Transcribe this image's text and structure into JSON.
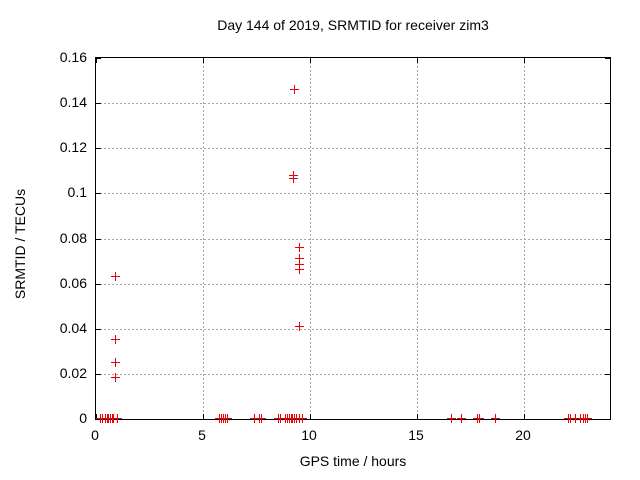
{
  "chart_data": {
    "type": "scatter",
    "title": "Day 144 of 2019, SRMTID for receiver zim3",
    "xlabel": "GPS time / hours",
    "ylabel": "SRMTID / TECUs",
    "xlim": [
      0,
      24.03
    ],
    "ylim": [
      0,
      0.16
    ],
    "xticks": [
      {
        "v": 0,
        "label": "0"
      },
      {
        "v": 5,
        "label": "5"
      },
      {
        "v": 10,
        "label": "10"
      },
      {
        "v": 15,
        "label": "15"
      },
      {
        "v": 20,
        "label": "20"
      }
    ],
    "yticks": [
      {
        "v": 0,
        "label": "0"
      },
      {
        "v": 0.02,
        "label": "0.02"
      },
      {
        "v": 0.04,
        "label": "0.04"
      },
      {
        "v": 0.06,
        "label": "0.06"
      },
      {
        "v": 0.08,
        "label": "0.08"
      },
      {
        "v": 0.1,
        "label": "0.1"
      },
      {
        "v": 0.12,
        "label": "0.12"
      },
      {
        "v": 0.14,
        "label": "0.14"
      },
      {
        "v": 0.16,
        "label": "0.16"
      }
    ],
    "grid": true,
    "legend": false,
    "marker": "plus",
    "marker_color": "#f00000",
    "grid_color": "#a6a6a6",
    "series": [
      {
        "name": "SRMTID",
        "points": [
          [
            0.93,
            0.063
          ],
          [
            0.93,
            0.035
          ],
          [
            0.93,
            0.025
          ],
          [
            0.93,
            0.018
          ],
          [
            9.3,
            0.146
          ],
          [
            9.24,
            0.1077
          ],
          [
            9.24,
            0.1063
          ],
          [
            9.53,
            0.076
          ],
          [
            9.53,
            0.0708
          ],
          [
            9.53,
            0.0684
          ],
          [
            9.53,
            0.0659
          ],
          [
            9.53,
            0.0406
          ],
          [
            0.25,
            0
          ],
          [
            0.33,
            0
          ],
          [
            0.48,
            0
          ],
          [
            0.56,
            0
          ],
          [
            0.63,
            0
          ],
          [
            0.7,
            0
          ],
          [
            0.78,
            0
          ],
          [
            0.86,
            0
          ],
          [
            1.02,
            0
          ],
          [
            5.8,
            0
          ],
          [
            5.9,
            0
          ],
          [
            6.0,
            0
          ],
          [
            6.08,
            0
          ],
          [
            6.16,
            0
          ],
          [
            7.45,
            0
          ],
          [
            7.68,
            0
          ],
          [
            7.76,
            0
          ],
          [
            8.55,
            0
          ],
          [
            8.65,
            0
          ],
          [
            8.9,
            0
          ],
          [
            8.98,
            0
          ],
          [
            9.06,
            0
          ],
          [
            9.14,
            0
          ],
          [
            9.22,
            0
          ],
          [
            9.3,
            0
          ],
          [
            9.42,
            0
          ],
          [
            9.55,
            0
          ],
          [
            9.7,
            0
          ],
          [
            16.62,
            0
          ],
          [
            17.1,
            0
          ],
          [
            17.85,
            0
          ],
          [
            17.95,
            0
          ],
          [
            18.7,
            0
          ],
          [
            22.1,
            0
          ],
          [
            22.2,
            0
          ],
          [
            22.42,
            0
          ],
          [
            22.66,
            0
          ],
          [
            22.8,
            0
          ],
          [
            22.9,
            0
          ],
          [
            23.0,
            0
          ]
        ]
      }
    ]
  }
}
